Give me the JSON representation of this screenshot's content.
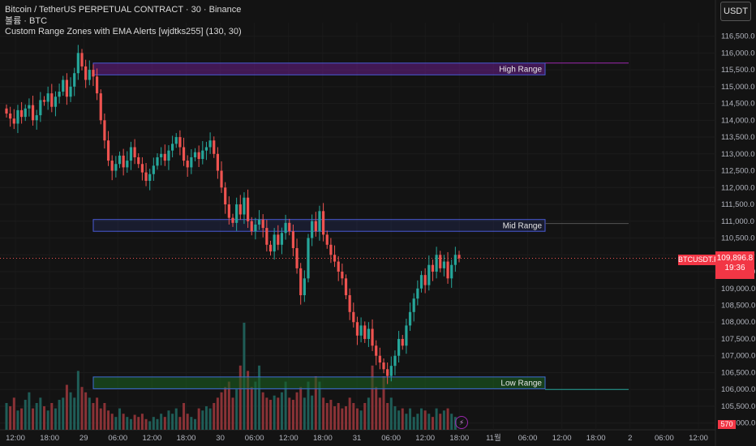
{
  "legend": {
    "line1": "Bitcoin / TetherUS PERPETUAL CONTRACT · 30 · Binance",
    "line2": "볼륨 · BTC",
    "line3": "Custom Range Zones with EMA Alerts [wjdtks255] (130, 30)"
  },
  "currency_button": "USDT",
  "price_tag": {
    "symbol": "BTCUSDT.P",
    "price": "109,896.8",
    "countdown": "19:36"
  },
  "volume_tag": "570",
  "colors": {
    "up": "#26a69a",
    "down": "#ef5350",
    "zone_high": "#7b1fa2",
    "zone_mid": "#3949ab",
    "zone_low": "#1b5e20",
    "bg": "#131313"
  },
  "chart_data": {
    "type": "candlestick",
    "y_ticks": [
      "116,500.0",
      "116,000.0",
      "115,500.0",
      "115,000.0",
      "114,500.0",
      "114,000.0",
      "113,500.0",
      "113,000.0",
      "112,500.0",
      "112,000.0",
      "111,500.0",
      "111,000.0",
      "110,500.0",
      "110,000.0",
      "109,500.0",
      "109,000.0",
      "108,500.0",
      "108,000.0",
      "107,500.0",
      "107,000.0",
      "106,500.0",
      "106,000.0",
      "105,500.0",
      "105,000.0"
    ],
    "x_ticks": [
      "12:00",
      "18:00",
      "29",
      "06:00",
      "12:00",
      "18:00",
      "30",
      "06:00",
      "12:00",
      "18:00",
      "31",
      "06:00",
      "12:00",
      "18:00",
      "11월",
      "06:00",
      "12:00",
      "18:00",
      "2",
      "06:00",
      "12:00"
    ],
    "ylim": [
      104800,
      116900
    ],
    "zones": [
      {
        "name": "High Range",
        "low": 115350,
        "high": 115700
      },
      {
        "name": "Mid Range",
        "low": 110700,
        "high": 111050
      },
      {
        "name": "Low Range",
        "low": 106020,
        "high": 106370
      }
    ],
    "last_price": 109896.8,
    "close": [
      114200,
      114050,
      113900,
      114300,
      114100,
      114350,
      114450,
      114000,
      114150,
      114600,
      114550,
      114800,
      114400,
      114700,
      114850,
      115200,
      114700,
      115000,
      115400,
      116000,
      115600,
      115200,
      115500,
      115300,
      114800,
      114000,
      113400,
      112800,
      112500,
      112700,
      112950,
      112600,
      112800,
      113200,
      112900,
      112700,
      112450,
      112200,
      112400,
      112650,
      112900,
      113000,
      112800,
      113100,
      113300,
      113500,
      113200,
      112800,
      112600,
      112900,
      113050,
      112850,
      113100,
      113200,
      113400,
      113000,
      112500,
      112000,
      111500,
      111100,
      110950,
      111500,
      111200,
      111700,
      111000,
      110700,
      110900,
      111050,
      110800,
      110300,
      110100,
      110600,
      110300,
      110650,
      110950,
      110700,
      110200,
      109600,
      108800,
      109300,
      110500,
      111000,
      110700,
      111300,
      110600,
      110300,
      110000,
      109800,
      109500,
      109300,
      108800,
      108300,
      108000,
      107600,
      107900,
      107500,
      107800,
      107300,
      107000,
      106800,
      106600,
      106400,
      106700,
      107000,
      107500,
      107300,
      107900,
      108300,
      108700,
      109000,
      109400,
      109100,
      109700,
      109500,
      110000,
      109600,
      109800,
      109300,
      109700,
      110000,
      109896.8
    ],
    "volume_pct": [
      0.25,
      0.22,
      0.3,
      0.18,
      0.2,
      0.28,
      0.35,
      0.2,
      0.25,
      0.3,
      0.22,
      0.18,
      0.25,
      0.2,
      0.28,
      0.3,
      0.42,
      0.35,
      0.3,
      0.55,
      0.4,
      0.35,
      0.3,
      0.25,
      0.3,
      0.2,
      0.25,
      0.18,
      0.15,
      0.12,
      0.2,
      0.15,
      0.12,
      0.1,
      0.14,
      0.12,
      0.15,
      0.1,
      0.08,
      0.12,
      0.1,
      0.15,
      0.12,
      0.18,
      0.15,
      0.2,
      0.12,
      0.25,
      0.15,
      0.12,
      0.1,
      0.2,
      0.18,
      0.22,
      0.2,
      0.25,
      0.3,
      0.35,
      0.4,
      0.45,
      0.3,
      0.38,
      0.6,
      1.0,
      0.55,
      0.4,
      0.45,
      0.6,
      0.35,
      0.3,
      0.28,
      0.32,
      0.3,
      0.35,
      0.45,
      0.3,
      0.28,
      0.35,
      0.4,
      0.3,
      0.45,
      0.32,
      0.5,
      0.45,
      0.3,
      0.25,
      0.28,
      0.22,
      0.25,
      0.2,
      0.22,
      0.3,
      0.25,
      0.2,
      0.18,
      0.25,
      0.3,
      0.6,
      0.4,
      0.3,
      0.5,
      0.25,
      0.3,
      0.22,
      0.18,
      0.2,
      0.15,
      0.2,
      0.12,
      0.15,
      0.2,
      0.18,
      0.15,
      0.12,
      0.2,
      0.15,
      0.18,
      0.2,
      0.15,
      0.12
    ]
  }
}
